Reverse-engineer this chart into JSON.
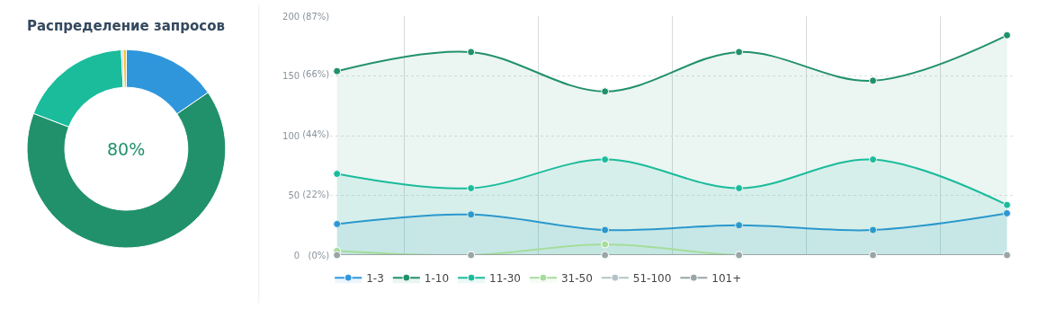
{
  "chart_data": [
    {
      "type": "donut",
      "title": "Распределение запросов",
      "categories": [
        null,
        null,
        null,
        null,
        null
      ],
      "values": [
        15.4,
        65.4,
        18.4,
        0.3,
        0.5
      ],
      "colors": [
        "#2f96dc",
        "#21916b",
        "#1abc9c",
        "#b3c2c6",
        "#f1c232"
      ],
      "annotations": [
        "80%"
      ],
      "legend": false
    },
    {
      "type": "area",
      "categories": [
        null,
        null,
        null,
        null,
        null,
        null
      ],
      "tick_labels": "y",
      "ylim": [
        0,
        200
      ],
      "yticks": [
        0,
        50,
        100,
        150,
        200
      ],
      "y2lim": [
        0,
        87
      ],
      "y2ticks": [
        {
          "value": 0,
          "label": "(0%)"
        },
        {
          "value": 22,
          "label": "(22%)"
        },
        {
          "value": 44,
          "label": "(44%)"
        },
        {
          "value": 66,
          "label": "(66%)"
        },
        {
          "value": 87,
          "label": "(87%)"
        }
      ],
      "grid": true,
      "legend": "bottom",
      "marker": "circle",
      "line_style": "solid",
      "series": [
        {
          "name": "1-3",
          "color": "#2f96dc",
          "values": [
            26,
            34,
            21,
            25,
            21,
            35
          ]
        },
        {
          "name": "1-10",
          "color": "#21916b",
          "values": [
            154,
            170,
            137,
            170,
            146,
            184
          ]
        },
        {
          "name": "11-30",
          "color": "#1abc9c",
          "values": [
            68,
            56,
            80,
            56,
            80,
            42
          ]
        },
        {
          "name": "31-50",
          "color": "#a5dd9b",
          "values": [
            3.5,
            0,
            9,
            0,
            0,
            0
          ]
        },
        {
          "name": "51-100",
          "type": "line",
          "color": "#b3c2c6",
          "values": [
            null,
            null,
            null,
            null,
            null,
            null
          ]
        },
        {
          "name": "101+",
          "type": "line",
          "color": "#99a5a6",
          "values": [
            0,
            0,
            0,
            0,
            0,
            0
          ]
        }
      ]
    }
  ]
}
